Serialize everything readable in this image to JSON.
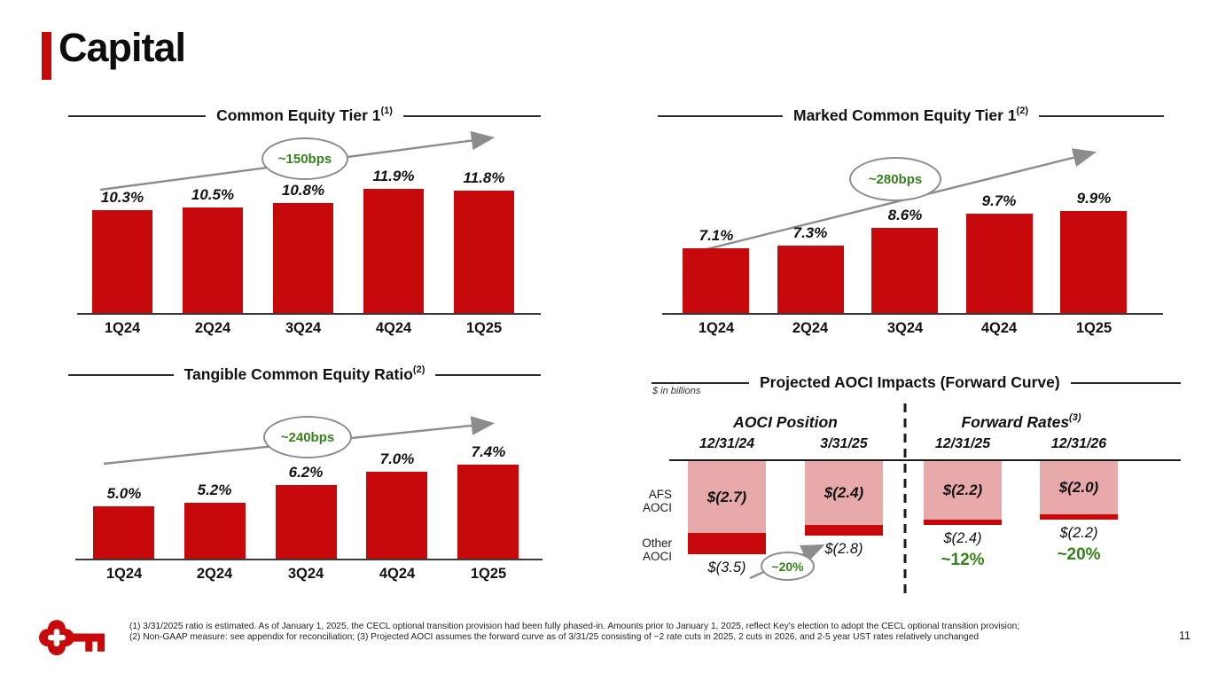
{
  "slide": {
    "title": "Capital",
    "page_number": "11",
    "footnotes": [
      "(1) 3/31/2025 ratio is estimated.  As of January 1, 2025, the CECL optional transition provision had been fully phased-in. Amounts prior to January 1, 2025, reflect Key's election to adopt the CECL optional transition provision;",
      "(2) Non-GAAP measure: see appendix for reconciliation; (3) Projected AOCI assumes the forward curve as of 3/31/25 consisting of ~2 rate cuts in 2025, 2 cuts in 2026, and 2-5 year UST rates relatively unchanged"
    ]
  },
  "colors": {
    "bar_red": "#C8090C",
    "afs_pink": "#E8A9AB",
    "annotation_green": "#37811E",
    "oval_gray": "#8C8C8C"
  },
  "chart_data": [
    {
      "id": "common_equity_tier_1",
      "type": "bar",
      "title": "Common Equity Tier 1",
      "title_sup": "(1)",
      "categories": [
        "1Q24",
        "2Q24",
        "3Q24",
        "4Q24",
        "1Q25"
      ],
      "values": [
        10.3,
        10.5,
        10.8,
        11.9,
        11.8
      ],
      "labels": [
        "10.3%",
        "10.5%",
        "10.8%",
        "11.9%",
        "11.8%"
      ],
      "annotation": "~150bps",
      "ylim": [
        2.4,
        14.3
      ],
      "grid": false,
      "legend": "none"
    },
    {
      "id": "marked_common_equity_tier_1",
      "type": "bar",
      "title": "Marked Common Equity Tier 1",
      "title_sup": "(2)",
      "categories": [
        "1Q24",
        "2Q24",
        "3Q24",
        "4Q24",
        "1Q25"
      ],
      "values": [
        7.1,
        7.3,
        8.6,
        9.7,
        9.9
      ],
      "labels": [
        "7.1%",
        "7.3%",
        "8.6%",
        "9.7%",
        "9.9%"
      ],
      "annotation": "~280bps",
      "ylim": [
        2.2,
        13.9
      ],
      "grid": false,
      "legend": "none"
    },
    {
      "id": "tangible_common_equity_ratio",
      "type": "bar",
      "title": "Tangible Common Equity Ratio",
      "title_sup": "(2)",
      "categories": [
        "1Q24",
        "2Q24",
        "3Q24",
        "4Q24",
        "1Q25"
      ],
      "values": [
        5.0,
        5.2,
        6.2,
        7.0,
        7.4
      ],
      "labels": [
        "5.0%",
        "5.2%",
        "6.2%",
        "7.0%",
        "7.4%"
      ],
      "annotation": "~240bps",
      "ylim": [
        2.0,
        8.0
      ],
      "grid": false,
      "legend": "none"
    },
    {
      "id": "projected_aoci_impacts",
      "type": "bar",
      "subtype": "stacked-hanging-bar",
      "title": "Projected AOCI Impacts (Forward Curve)",
      "units_note": "$ in billions",
      "group_headers": [
        {
          "label": "AOCI Position",
          "sup": ""
        },
        {
          "label": "Forward Rates",
          "sup": "(3)"
        }
      ],
      "row_labels": [
        "AFS AOCI",
        "Other AOCI"
      ],
      "columns": [
        {
          "date": "12/31/24",
          "group": 0,
          "afs": 2.7,
          "afs_label": "$(2.7)",
          "other": 0.8,
          "total": 3.5,
          "total_label": "$(3.5)"
        },
        {
          "date": "3/31/25",
          "group": 0,
          "afs": 2.4,
          "afs_label": "$(2.4)",
          "other": 0.4,
          "total": 2.8,
          "total_label": "$(2.8)"
        },
        {
          "date": "12/31/25",
          "group": 1,
          "afs": 2.2,
          "afs_label": "$(2.2)",
          "other": 0.2,
          "total": 2.4,
          "total_label": "$(2.4)",
          "pct_label": "~12%"
        },
        {
          "date": "12/31/26",
          "group": 1,
          "afs": 2.0,
          "afs_label": "$(2.0)",
          "other": 0.2,
          "total": 2.2,
          "total_label": "$(2.2)",
          "pct_label": "~20%"
        }
      ],
      "annotation": "~20%"
    }
  ]
}
